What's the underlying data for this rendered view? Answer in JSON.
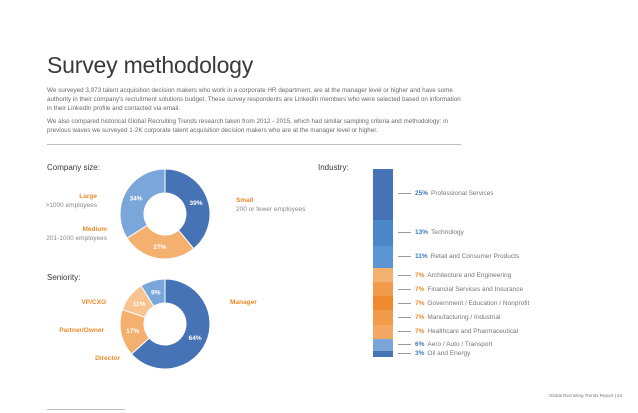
{
  "title": "Survey methodology",
  "paragraphs": [
    "We surveyed 3,973 talent acquisition decision makers who work in a corporate HR department, are at the manager level or higher and have some authority in their company's recruitment solutions budget. These survey respondents are LinkedIn members who were selected based on information in their LinkedIn profile and contacted via email.",
    "We also compared historical Global Recruiting Trends research taken from 2012 - 2015, which had similar sampling criteria and methodology: in previous waves we surveyed 1-2K corporate talent acquisition decision makers who are at the manager level or higher."
  ],
  "colors": {
    "dark_blue": "#4573b5",
    "light_blue": "#7ba6d9",
    "orange": "#f4b06e",
    "accent_blue": "#3e7bc0",
    "accent_orange": "#ef8a2a"
  },
  "company_size": {
    "label": "Company size:",
    "legend": {
      "small_name": "Small",
      "small_desc": "200 or fewer employees",
      "large_name": "Large",
      "large_desc": ">1000 employees",
      "medium_name": "Medium",
      "medium_desc": "201-1000 employees"
    }
  },
  "seniority": {
    "label": "Seniority:",
    "legend": {
      "manager": "Manager",
      "vpcxo": "VP/CXO",
      "partner": "Partner/Owner",
      "director": "Director"
    }
  },
  "industry": {
    "label": "Industry:"
  },
  "footer": "Global Recruiting Trends Report | 24",
  "chart_data": [
    {
      "type": "pie",
      "categories": [
        "Small",
        "Medium",
        "Large"
      ],
      "values": [
        39,
        27,
        34
      ],
      "labels": [
        "39%",
        "27%",
        "34%"
      ],
      "colors": [
        "#4573b5",
        "#f4b06e",
        "#7ba6d9"
      ],
      "title": "Company size:"
    },
    {
      "type": "pie",
      "categories": [
        "Manager",
        "Director",
        "Partner/Owner",
        "VP/CXO"
      ],
      "values": [
        64,
        17,
        11,
        9
      ],
      "labels": [
        "64%",
        "17%",
        "11%",
        "9%"
      ],
      "colors": [
        "#4573b5",
        "#f4b06e",
        "#f7c390",
        "#7ba6d9"
      ],
      "title": "Seniority:"
    },
    {
      "type": "bar",
      "title": "Industry:",
      "categories": [
        "Professional Services",
        "Technology",
        "Retail and Consumer Products",
        "Architecture and Engineering",
        "Financial Services and Insurance",
        "Government / Education / Nonprofit",
        "Manufacturing / Industrial",
        "Healthcare and Pharmaceutical",
        "Aero / Auto / Transport",
        "Oil and Energy"
      ],
      "values": [
        25,
        13,
        11,
        7,
        7,
        7,
        7,
        7,
        6,
        3
      ],
      "labels": [
        "25%",
        "13%",
        "11%",
        "7%",
        "7%",
        "7%",
        "7%",
        "7%",
        "6%",
        "3%"
      ],
      "colors": [
        "#4573b5",
        "#4a86c8",
        "#5b95d3",
        "#f4b06e",
        "#f29b4b",
        "#f08a2e",
        "#f29b4b",
        "#f4a862",
        "#7ba6d9",
        "#4573b5"
      ]
    }
  ]
}
